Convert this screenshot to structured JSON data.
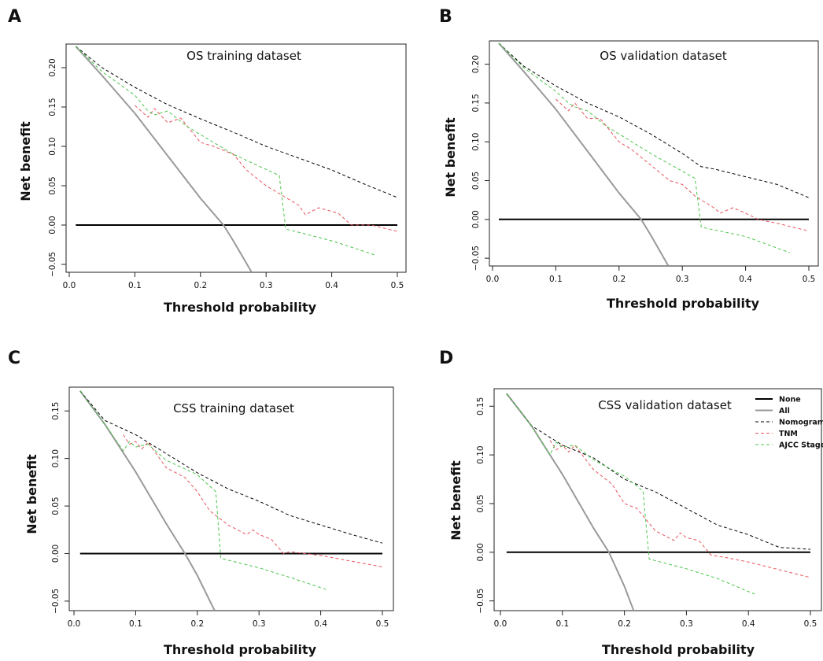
{
  "chart_data": [
    {
      "type": "line",
      "panel_label": "A",
      "title": "OS training dataset",
      "xlabel": "Threshold probability",
      "ylabel": "Net benefit",
      "xlim": [
        0,
        0.5
      ],
      "ylim": [
        -0.06,
        0.23
      ],
      "xticks": [
        0.0,
        0.1,
        0.2,
        0.3,
        0.4,
        0.5
      ],
      "xtick_labels": [
        "0.0",
        "0.1",
        "0.2",
        "0.3",
        "0.4",
        "0.5"
      ],
      "yticks": [
        -0.05,
        0.0,
        0.05,
        0.1,
        0.15,
        0.2
      ],
      "ytick_labels": [
        "−0.05",
        "0.00",
        "0.05",
        "0.10",
        "0.15",
        "0.20"
      ],
      "series": [
        {
          "name": "None",
          "color": "#000000",
          "dash": "solid",
          "width": 2,
          "x": [
            0.01,
            0.5
          ],
          "y": [
            0,
            0
          ]
        },
        {
          "name": "All",
          "color": "#9a9a9a",
          "dash": "solid",
          "width": 2,
          "x": [
            0.01,
            0.05,
            0.1,
            0.15,
            0.2,
            0.235,
            0.25,
            0.278
          ],
          "y": [
            0.227,
            0.19,
            0.142,
            0.088,
            0.034,
            0.0,
            -0.02,
            -0.06
          ]
        },
        {
          "name": "Nomogram",
          "color": "#000000",
          "dash": "dashed",
          "width": 1,
          "x": [
            0.01,
            0.05,
            0.1,
            0.15,
            0.2,
            0.25,
            0.3,
            0.35,
            0.4,
            0.45,
            0.5
          ],
          "y": [
            0.227,
            0.2,
            0.175,
            0.153,
            0.135,
            0.118,
            0.1,
            0.085,
            0.07,
            0.052,
            0.035
          ]
        },
        {
          "name": "TNM",
          "color": "#e8545e",
          "dash": "dashed",
          "width": 1,
          "x": [
            0.1,
            0.12,
            0.13,
            0.15,
            0.17,
            0.2,
            0.22,
            0.25,
            0.27,
            0.3,
            0.32,
            0.35,
            0.36,
            0.38,
            0.41,
            0.43,
            0.46,
            0.5
          ],
          "y": [
            0.152,
            0.137,
            0.148,
            0.13,
            0.136,
            0.105,
            0.1,
            0.09,
            0.07,
            0.05,
            0.04,
            0.025,
            0.013,
            0.022,
            0.015,
            0.0,
            0.0,
            -0.008
          ]
        },
        {
          "name": "AJCC Stage",
          "color": "#4fc44f",
          "dash": "dashed",
          "width": 1,
          "x": [
            0.01,
            0.05,
            0.1,
            0.12,
            0.13,
            0.15,
            0.18,
            0.2,
            0.25,
            0.32,
            0.33,
            0.4,
            0.466
          ],
          "y": [
            0.227,
            0.195,
            0.165,
            0.145,
            0.14,
            0.145,
            0.125,
            0.115,
            0.09,
            0.063,
            -0.005,
            -0.02,
            -0.038
          ]
        }
      ]
    },
    {
      "type": "line",
      "panel_label": "B",
      "title": "OS validation dataset",
      "xlabel": "Threshold probability",
      "ylabel": "Net benefit",
      "xlim": [
        0,
        0.5
      ],
      "ylim": [
        -0.06,
        0.23
      ],
      "xticks": [
        0.0,
        0.1,
        0.2,
        0.3,
        0.4,
        0.5
      ],
      "xtick_labels": [
        "0.0",
        "0.1",
        "0.2",
        "0.3",
        "0.4",
        "0.5"
      ],
      "yticks": [
        -0.05,
        0.0,
        0.05,
        0.1,
        0.15,
        0.2
      ],
      "ytick_labels": [
        "−0.05",
        "0.00",
        "0.05",
        "0.10",
        "0.15",
        "0.20"
      ],
      "series": [
        {
          "name": "None",
          "color": "#000000",
          "dash": "solid",
          "width": 2,
          "x": [
            0.01,
            0.5
          ],
          "y": [
            0,
            0
          ]
        },
        {
          "name": "All",
          "color": "#9a9a9a",
          "dash": "solid",
          "width": 2,
          "x": [
            0.01,
            0.05,
            0.1,
            0.15,
            0.2,
            0.235,
            0.25,
            0.278
          ],
          "y": [
            0.227,
            0.19,
            0.142,
            0.088,
            0.034,
            0.0,
            -0.02,
            -0.06
          ]
        },
        {
          "name": "Nomogram",
          "color": "#000000",
          "dash": "dashed",
          "width": 1,
          "x": [
            0.01,
            0.05,
            0.1,
            0.15,
            0.2,
            0.25,
            0.3,
            0.33,
            0.35,
            0.4,
            0.45,
            0.5
          ],
          "y": [
            0.227,
            0.197,
            0.172,
            0.15,
            0.132,
            0.11,
            0.085,
            0.068,
            0.065,
            0.055,
            0.045,
            0.028
          ]
        },
        {
          "name": "TNM",
          "color": "#e8545e",
          "dash": "dashed",
          "width": 1,
          "x": [
            0.1,
            0.12,
            0.13,
            0.15,
            0.17,
            0.2,
            0.22,
            0.25,
            0.28,
            0.3,
            0.32,
            0.34,
            0.35,
            0.36,
            0.38,
            0.4,
            0.42,
            0.45,
            0.5
          ],
          "y": [
            0.155,
            0.14,
            0.15,
            0.13,
            0.13,
            0.1,
            0.09,
            0.07,
            0.05,
            0.045,
            0.03,
            0.02,
            0.015,
            0.008,
            0.015,
            0.008,
            0.0,
            -0.005,
            -0.015
          ]
        },
        {
          "name": "AJCC Stage",
          "color": "#4fc44f",
          "dash": "dashed",
          "width": 1,
          "x": [
            0.01,
            0.05,
            0.1,
            0.12,
            0.13,
            0.15,
            0.18,
            0.2,
            0.25,
            0.32,
            0.33,
            0.4,
            0.47
          ],
          "y": [
            0.227,
            0.195,
            0.165,
            0.15,
            0.145,
            0.14,
            0.12,
            0.11,
            0.085,
            0.053,
            -0.01,
            -0.022,
            -0.043
          ]
        }
      ]
    },
    {
      "type": "line",
      "panel_label": "C",
      "title": "CSS training dataset",
      "xlabel": "Threshold probability",
      "ylabel": "Net benefit",
      "xlim": [
        0,
        0.5
      ],
      "ylim": [
        -0.06,
        0.175
      ],
      "xticks": [
        0.0,
        0.1,
        0.2,
        0.3,
        0.4,
        0.5
      ],
      "xtick_labels": [
        "0.0",
        "0.1",
        "0.2",
        "0.3",
        "0.4",
        "0.5"
      ],
      "yticks": [
        -0.05,
        0.0,
        0.05,
        0.1,
        0.15
      ],
      "ytick_labels": [
        "−0.05",
        "0.00",
        "0.05",
        "0.10",
        "0.15"
      ],
      "series": [
        {
          "name": "None",
          "color": "#000000",
          "dash": "solid",
          "width": 2,
          "x": [
            0.01,
            0.5
          ],
          "y": [
            0,
            0
          ]
        },
        {
          "name": "All",
          "color": "#9a9a9a",
          "dash": "solid",
          "width": 2,
          "x": [
            0.01,
            0.05,
            0.1,
            0.15,
            0.18,
            0.2,
            0.228
          ],
          "y": [
            0.171,
            0.136,
            0.086,
            0.031,
            0.0,
            -0.023,
            -0.06
          ]
        },
        {
          "name": "Nomogram",
          "color": "#000000",
          "dash": "dashed",
          "width": 1,
          "x": [
            0.01,
            0.05,
            0.1,
            0.15,
            0.2,
            0.25,
            0.3,
            0.35,
            0.4,
            0.45,
            0.5
          ],
          "y": [
            0.171,
            0.14,
            0.125,
            0.105,
            0.085,
            0.068,
            0.055,
            0.04,
            0.03,
            0.02,
            0.011
          ]
        },
        {
          "name": "TNM",
          "color": "#e8545e",
          "dash": "dashed",
          "width": 1,
          "x": [
            0.08,
            0.09,
            0.1,
            0.11,
            0.12,
            0.15,
            0.18,
            0.2,
            0.22,
            0.25,
            0.28,
            0.29,
            0.3,
            0.32,
            0.34,
            0.35,
            0.4,
            0.45,
            0.5
          ],
          "y": [
            0.125,
            0.115,
            0.118,
            0.11,
            0.117,
            0.09,
            0.08,
            0.065,
            0.045,
            0.03,
            0.02,
            0.025,
            0.02,
            0.015,
            0.0,
            0.002,
            -0.002,
            -0.008,
            -0.014
          ]
        },
        {
          "name": "AJCC Stage",
          "color": "#4fc44f",
          "dash": "dashed",
          "width": 1,
          "x": [
            0.01,
            0.05,
            0.08,
            0.09,
            0.1,
            0.12,
            0.15,
            0.2,
            0.23,
            0.238,
            0.3,
            0.35,
            0.41
          ],
          "y": [
            0.171,
            0.136,
            0.108,
            0.118,
            0.112,
            0.115,
            0.098,
            0.083,
            0.065,
            -0.005,
            -0.015,
            -0.025,
            -0.038
          ]
        }
      ]
    },
    {
      "type": "line",
      "panel_label": "D",
      "title": "CSS validation dataset",
      "xlabel": "Threshold probability",
      "ylabel": "Net benefit",
      "xlim": [
        0,
        0.5
      ],
      "ylim": [
        -0.06,
        0.168
      ],
      "xticks": [
        0.0,
        0.1,
        0.2,
        0.3,
        0.4,
        0.5
      ],
      "xtick_labels": [
        "0.0",
        "0.1",
        "0.2",
        "0.3",
        "0.4",
        "0.5"
      ],
      "yticks": [
        -0.05,
        0.0,
        0.05,
        0.1,
        0.15
      ],
      "ytick_labels": [
        "−0.05",
        "0.00",
        "0.05",
        "0.10",
        "0.15"
      ],
      "legend": {
        "position": "top-right",
        "entries": [
          "None",
          "All",
          "Nomogram",
          "TNM",
          "AJCC Stage"
        ]
      },
      "series": [
        {
          "name": "None",
          "color": "#000000",
          "dash": "solid",
          "width": 2,
          "x": [
            0.01,
            0.5
          ],
          "y": [
            0,
            0
          ]
        },
        {
          "name": "All",
          "color": "#9a9a9a",
          "dash": "solid",
          "width": 2,
          "x": [
            0.01,
            0.05,
            0.1,
            0.15,
            0.175,
            0.2,
            0.215
          ],
          "y": [
            0.163,
            0.13,
            0.08,
            0.025,
            0.0,
            -0.035,
            -0.06
          ]
        },
        {
          "name": "Nomogram",
          "color": "#000000",
          "dash": "dashed",
          "width": 1,
          "x": [
            0.01,
            0.05,
            0.1,
            0.15,
            0.2,
            0.25,
            0.3,
            0.35,
            0.4,
            0.45,
            0.5
          ],
          "y": [
            0.163,
            0.13,
            0.11,
            0.097,
            0.075,
            0.062,
            0.045,
            0.028,
            0.018,
            0.005,
            0.003
          ]
        },
        {
          "name": "TNM",
          "color": "#e8545e",
          "dash": "dashed",
          "width": 1,
          "x": [
            0.08,
            0.09,
            0.1,
            0.11,
            0.12,
            0.15,
            0.18,
            0.2,
            0.22,
            0.25,
            0.28,
            0.29,
            0.3,
            0.32,
            0.34,
            0.36,
            0.4,
            0.45,
            0.5
          ],
          "y": [
            0.115,
            0.105,
            0.11,
            0.103,
            0.11,
            0.085,
            0.07,
            0.05,
            0.045,
            0.022,
            0.012,
            0.02,
            0.015,
            0.012,
            -0.003,
            -0.005,
            -0.01,
            -0.018,
            -0.026
          ]
        },
        {
          "name": "AJCC Stage",
          "color": "#4fc44f",
          "dash": "dashed",
          "width": 1,
          "x": [
            0.01,
            0.05,
            0.08,
            0.09,
            0.1,
            0.12,
            0.15,
            0.2,
            0.23,
            0.24,
            0.3,
            0.35,
            0.41
          ],
          "y": [
            0.163,
            0.13,
            0.1,
            0.113,
            0.108,
            0.11,
            0.095,
            0.078,
            0.063,
            -0.007,
            -0.017,
            -0.027,
            -0.043
          ]
        }
      ]
    }
  ]
}
